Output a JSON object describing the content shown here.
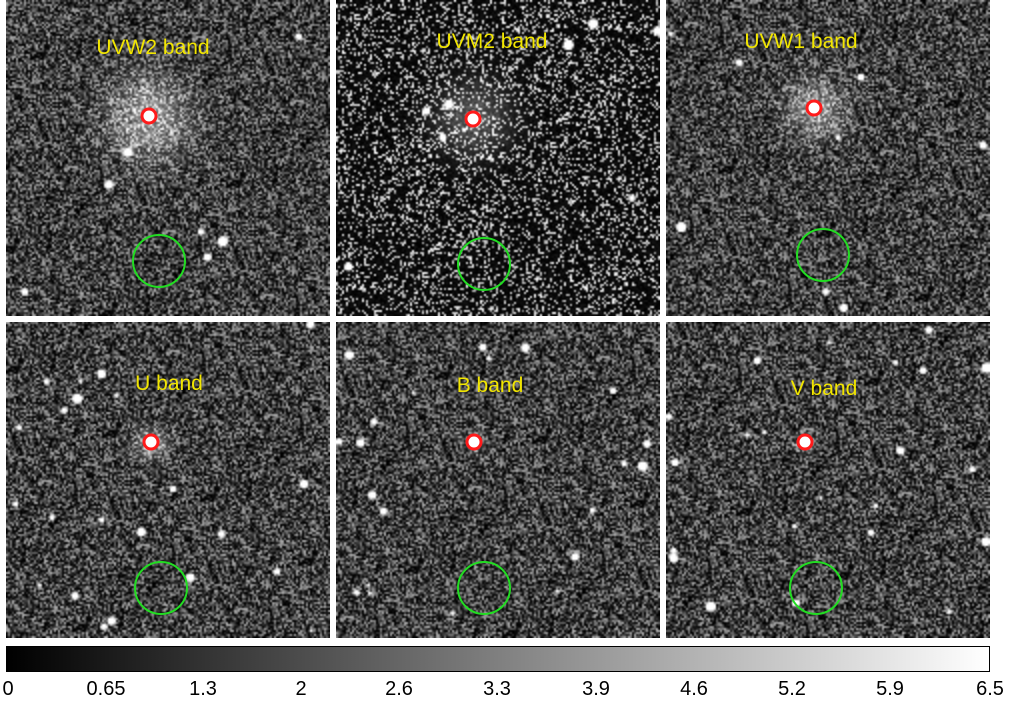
{
  "panels": [
    {
      "label": "UVW2 band"
    },
    {
      "label": "UVM2 band"
    },
    {
      "label": "UVW1 band"
    },
    {
      "label": "U band"
    },
    {
      "label": "B band"
    },
    {
      "label": "V band"
    }
  ],
  "colorbar": {
    "gradient": [
      "#000000",
      "#ffffff"
    ],
    "ticks": [
      "0",
      "0.65",
      "1.3",
      "2",
      "2.6",
      "3.3",
      "3.9",
      "4.6",
      "5.2",
      "5.9",
      "6.5"
    ]
  },
  "colors": {
    "label": "#f2e600",
    "source_region": "#ff1a1a",
    "background_region": "#22dd22"
  }
}
